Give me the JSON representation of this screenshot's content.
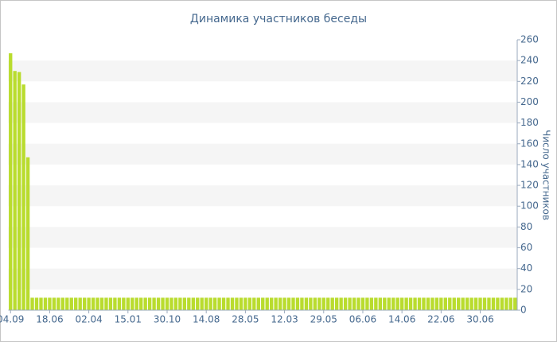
{
  "chart_data": {
    "type": "bar",
    "title": "Динамика участников беседы",
    "y_label": "Число участников",
    "categories": [
      "04.09",
      null,
      null,
      null,
      null,
      null,
      null,
      null,
      null,
      "18.06",
      null,
      null,
      null,
      null,
      null,
      null,
      null,
      null,
      "02.04",
      null,
      null,
      null,
      null,
      null,
      null,
      null,
      null,
      "15.01",
      null,
      null,
      null,
      null,
      null,
      null,
      null,
      null,
      "30.10",
      null,
      null,
      null,
      null,
      null,
      null,
      null,
      null,
      "14.08",
      null,
      null,
      null,
      null,
      null,
      null,
      null,
      null,
      "28.05",
      null,
      null,
      null,
      null,
      null,
      null,
      null,
      null,
      "12.03",
      null,
      null,
      null,
      null,
      null,
      null,
      null,
      null,
      "29.05",
      null,
      null,
      null,
      null,
      null,
      null,
      null,
      null,
      "06.06",
      null,
      null,
      null,
      null,
      null,
      null,
      null,
      null,
      "14.06",
      null,
      null,
      null,
      null,
      null,
      null,
      null,
      null,
      "22.06",
      null,
      null,
      null,
      null,
      null,
      null,
      null,
      null,
      "30.06",
      null,
      null,
      null,
      null,
      null,
      null,
      null,
      null
    ],
    "values": [
      247,
      230,
      229,
      217,
      147,
      12,
      12,
      12,
      12,
      12,
      12,
      12,
      12,
      12,
      12,
      12,
      12,
      12,
      12,
      12,
      12,
      12,
      12,
      12,
      12,
      12,
      12,
      12,
      12,
      12,
      12,
      12,
      12,
      12,
      12,
      12,
      12,
      12,
      12,
      12,
      12,
      12,
      12,
      12,
      12,
      12,
      12,
      12,
      12,
      12,
      12,
      12,
      12,
      12,
      12,
      12,
      12,
      12,
      12,
      12,
      12,
      12,
      12,
      12,
      12,
      12,
      12,
      12,
      12,
      12,
      12,
      12,
      12,
      12,
      12,
      12,
      12,
      12,
      12,
      12,
      12,
      12,
      12,
      12,
      12,
      12,
      12,
      12,
      12,
      12,
      12,
      12,
      12,
      12,
      12,
      12,
      12,
      12,
      12,
      12,
      12,
      12,
      12,
      12,
      12,
      12,
      12,
      12,
      12,
      12,
      12,
      12,
      12,
      12,
      12,
      12,
      12
    ],
    "color": "#b9dc2e",
    "ylim": [
      0,
      260
    ],
    "yticks": [
      0,
      20,
      40,
      60,
      80,
      100,
      120,
      140,
      160,
      180,
      200,
      220,
      240,
      260
    ],
    "grid": true
  }
}
